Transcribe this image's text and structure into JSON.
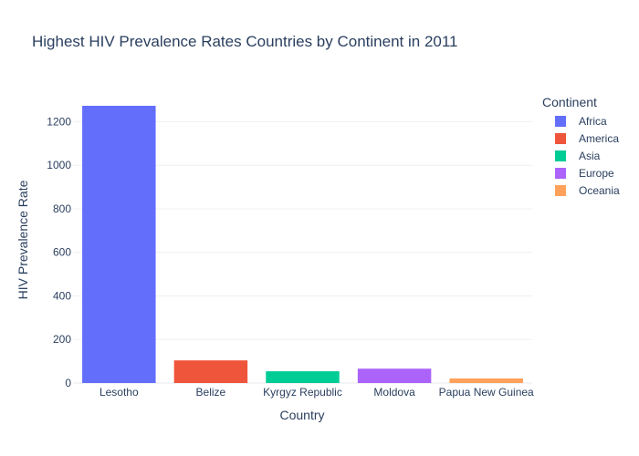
{
  "chart_data": {
    "type": "bar",
    "title": "Highest HIV Prevalence Rates Countries by Continent in 2011",
    "xlabel": "Country",
    "ylabel": "HIV Prevalence Rate",
    "ylim": [
      0,
      1340
    ],
    "yticks": [
      0,
      200,
      400,
      600,
      800,
      1000,
      1200
    ],
    "grid": true,
    "legend_position": "top-right",
    "legend_title": "Continent",
    "categories": [
      "Lesotho",
      "Belize",
      "Kyrgyz Republic",
      "Moldova",
      "Papua New Guinea"
    ],
    "series": [
      {
        "name": "Africa",
        "color": "#636efa",
        "values": [
          1273,
          null,
          null,
          null,
          null
        ]
      },
      {
        "name": "America",
        "color": "#ef553b",
        "values": [
          null,
          104,
          null,
          null,
          null
        ]
      },
      {
        "name": "Asia",
        "color": "#00cc96",
        "values": [
          null,
          null,
          54,
          null,
          null
        ]
      },
      {
        "name": "Europe",
        "color": "#ab63fa",
        "values": [
          null,
          null,
          null,
          66,
          null
        ]
      },
      {
        "name": "Oceania",
        "color": "#ffa15a",
        "values": [
          null,
          null,
          null,
          null,
          21
        ]
      }
    ]
  }
}
